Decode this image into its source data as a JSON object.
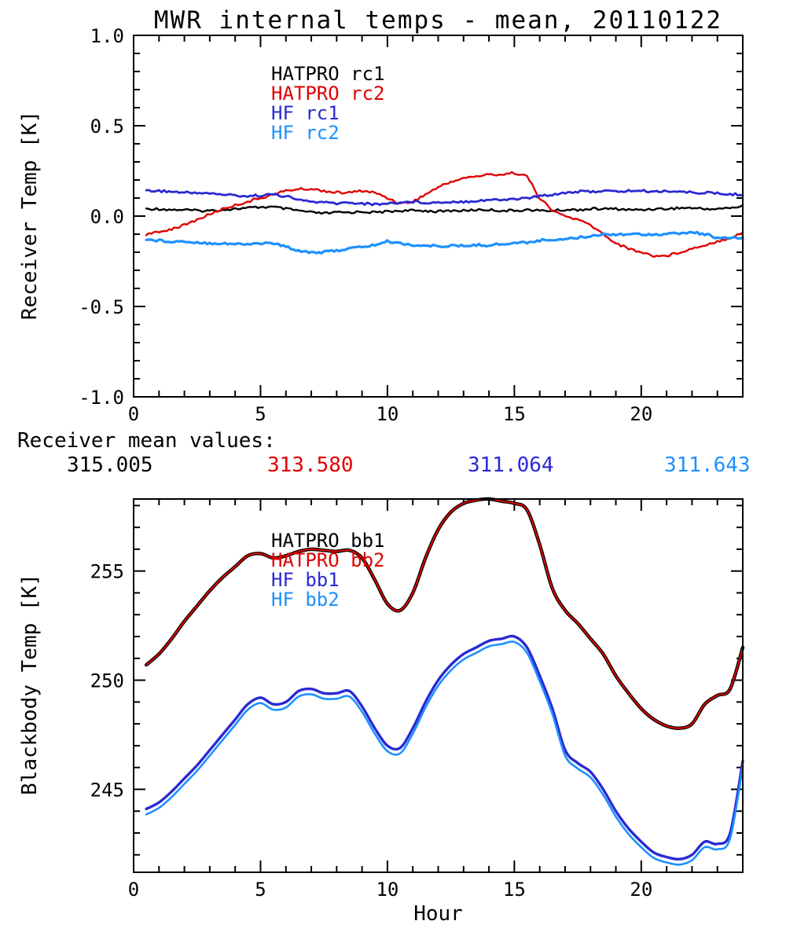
{
  "title": "MWR internal temps - mean, 20110122",
  "mean_values": {
    "label": "Receiver mean values:",
    "values": [
      {
        "text": "315.005",
        "color": "#000000"
      },
      {
        "text": "313.580",
        "color": "#e00000"
      },
      {
        "text": "311.064",
        "color": "#2a2ad2"
      },
      {
        "text": "311.643",
        "color": "#1e90ff"
      }
    ]
  },
  "chart_data": [
    {
      "type": "line",
      "panel": "receiver",
      "ylabel": "Receiver Temp [K]",
      "xlabel": "",
      "xlim": [
        0,
        24
      ],
      "ylim": [
        -1.0,
        1.0
      ],
      "grid": false,
      "legend_position": "upper-left-inside",
      "xticks": [
        {
          "v": 0,
          "label": "0"
        },
        {
          "v": 5,
          "label": "5"
        },
        {
          "v": 10,
          "label": "10"
        },
        {
          "v": 15,
          "label": "15"
        },
        {
          "v": 20,
          "label": "20"
        }
      ],
      "yticks": [
        {
          "v": 1.0,
          "label": "1.0"
        },
        {
          "v": 0.5,
          "label": "0.5"
        },
        {
          "v": 0.0,
          "label": "0.0"
        },
        {
          "v": -0.5,
          "label": "-0.5"
        },
        {
          "v": -1.0,
          "label": "-1.0"
        }
      ],
      "x": [
        0.5,
        1,
        1.5,
        2,
        2.5,
        3,
        3.5,
        4,
        4.5,
        5,
        5.5,
        6,
        6.5,
        7,
        7.5,
        8,
        8.5,
        9,
        9.5,
        10,
        10.5,
        11,
        11.5,
        12,
        12.5,
        13,
        13.5,
        14,
        14.5,
        15,
        15.5,
        16,
        16.5,
        17,
        17.5,
        18,
        18.5,
        19,
        19.5,
        20,
        20.5,
        21,
        21.5,
        22,
        22.5,
        23,
        23.5,
        24
      ],
      "series": [
        {
          "name": "HATPRO rc1",
          "color": "#000000",
          "values": [
            0.04,
            0.04,
            0.035,
            0.035,
            0.03,
            0.03,
            0.035,
            0.04,
            0.045,
            0.05,
            0.05,
            0.04,
            0.03,
            0.02,
            0.015,
            0.02,
            0.02,
            0.025,
            0.02,
            0.025,
            0.03,
            0.03,
            0.03,
            0.025,
            0.03,
            0.03,
            0.035,
            0.035,
            0.03,
            0.03,
            0.035,
            0.03,
            0.03,
            0.035,
            0.035,
            0.04,
            0.04,
            0.04,
            0.035,
            0.035,
            0.04,
            0.04,
            0.045,
            0.045,
            0.04,
            0.04,
            0.045,
            0.055
          ]
        },
        {
          "name": "HATPRO rc2",
          "color": "#e00000",
          "values": [
            -0.1,
            -0.09,
            -0.07,
            -0.05,
            -0.02,
            0.01,
            0.04,
            0.06,
            0.08,
            0.1,
            0.12,
            0.14,
            0.15,
            0.15,
            0.14,
            0.13,
            0.13,
            0.14,
            0.13,
            0.1,
            0.07,
            0.08,
            0.12,
            0.16,
            0.19,
            0.21,
            0.22,
            0.23,
            0.23,
            0.24,
            0.22,
            0.1,
            0.03,
            0.0,
            -0.02,
            -0.05,
            -0.1,
            -0.15,
            -0.18,
            -0.2,
            -0.22,
            -0.22,
            -0.2,
            -0.18,
            -0.16,
            -0.14,
            -0.12,
            -0.09
          ]
        },
        {
          "name": "HF rc1",
          "color": "#2a2ad2",
          "values": [
            0.14,
            0.14,
            0.135,
            0.13,
            0.13,
            0.125,
            0.12,
            0.115,
            0.11,
            0.115,
            0.12,
            0.11,
            0.09,
            0.08,
            0.075,
            0.07,
            0.075,
            0.07,
            0.065,
            0.07,
            0.075,
            0.08,
            0.075,
            0.075,
            0.08,
            0.08,
            0.085,
            0.09,
            0.09,
            0.095,
            0.1,
            0.11,
            0.12,
            0.13,
            0.135,
            0.135,
            0.14,
            0.135,
            0.14,
            0.14,
            0.135,
            0.14,
            0.135,
            0.13,
            0.13,
            0.125,
            0.12,
            0.12
          ]
        },
        {
          "name": "HF rc2",
          "color": "#1e90ff",
          "values": [
            -0.13,
            -0.135,
            -0.14,
            -0.14,
            -0.145,
            -0.15,
            -0.15,
            -0.155,
            -0.155,
            -0.15,
            -0.15,
            -0.17,
            -0.19,
            -0.2,
            -0.2,
            -0.19,
            -0.18,
            -0.17,
            -0.16,
            -0.14,
            -0.15,
            -0.16,
            -0.165,
            -0.165,
            -0.165,
            -0.165,
            -0.16,
            -0.16,
            -0.155,
            -0.15,
            -0.145,
            -0.135,
            -0.13,
            -0.125,
            -0.12,
            -0.11,
            -0.1,
            -0.1,
            -0.1,
            -0.1,
            -0.1,
            -0.1,
            -0.095,
            -0.09,
            -0.1,
            -0.12,
            -0.125,
            -0.12
          ]
        }
      ]
    },
    {
      "type": "line",
      "panel": "blackbody",
      "ylabel": "Blackbody Temp [K]",
      "xlabel": "Hour",
      "xlim": [
        0,
        24
      ],
      "ylim": [
        241.2,
        258.3
      ],
      "grid": false,
      "legend_position": "upper-left-inside",
      "xticks": [
        {
          "v": 0,
          "label": "0"
        },
        {
          "v": 5,
          "label": "5"
        },
        {
          "v": 10,
          "label": "10"
        },
        {
          "v": 15,
          "label": "15"
        },
        {
          "v": 20,
          "label": "20"
        }
      ],
      "yticks": [
        {
          "v": 255,
          "label": "255"
        },
        {
          "v": 250,
          "label": "250"
        },
        {
          "v": 245,
          "label": "245"
        }
      ],
      "x": [
        0.5,
        1,
        1.5,
        2,
        2.5,
        3,
        3.5,
        4,
        4.5,
        5,
        5.5,
        6,
        6.5,
        7,
        7.5,
        8,
        8.5,
        9,
        9.5,
        10,
        10.5,
        11,
        11.5,
        12,
        12.5,
        13,
        13.5,
        14,
        14.5,
        15,
        15.5,
        16,
        16.5,
        17,
        17.5,
        18,
        18.5,
        19,
        19.5,
        20,
        20.5,
        21,
        21.5,
        22,
        22.5,
        23,
        23.5,
        24
      ],
      "series": [
        {
          "name": "HATPRO bb1",
          "color": "#000000",
          "values": [
            250.7,
            251.2,
            251.9,
            252.7,
            253.4,
            254.1,
            254.7,
            255.2,
            255.7,
            255.8,
            255.6,
            255.7,
            255.9,
            256.0,
            255.95,
            255.9,
            255.95,
            255.6,
            254.6,
            253.5,
            253.2,
            254.0,
            255.6,
            256.9,
            257.7,
            258.1,
            258.25,
            258.3,
            258.2,
            258.1,
            257.8,
            256.2,
            254.2,
            253.2,
            252.6,
            251.9,
            251.2,
            250.2,
            249.4,
            248.7,
            248.2,
            247.9,
            247.8,
            248.0,
            248.9,
            249.3,
            249.6,
            251.5
          ]
        },
        {
          "name": "HATPRO bb2",
          "color": "#e00000",
          "values": [
            250.7,
            251.2,
            251.9,
            252.7,
            253.4,
            254.1,
            254.7,
            255.2,
            255.7,
            255.8,
            255.6,
            255.7,
            255.9,
            256.0,
            255.95,
            255.9,
            255.95,
            255.6,
            254.6,
            253.5,
            253.2,
            254.0,
            255.6,
            256.9,
            257.7,
            258.1,
            258.25,
            258.3,
            258.2,
            258.1,
            257.8,
            256.2,
            254.2,
            253.2,
            252.6,
            251.9,
            251.2,
            250.2,
            249.4,
            248.7,
            248.2,
            247.9,
            247.8,
            248.0,
            248.9,
            249.3,
            249.6,
            251.5
          ]
        },
        {
          "name": "HF bb1",
          "color": "#2a2ad2",
          "values": [
            244.1,
            244.4,
            244.9,
            245.5,
            246.1,
            246.8,
            247.5,
            248.2,
            248.9,
            249.2,
            248.9,
            249.0,
            249.5,
            249.6,
            249.4,
            249.4,
            249.5,
            248.8,
            247.8,
            247.0,
            246.9,
            247.8,
            249.0,
            250.0,
            250.7,
            251.2,
            251.5,
            251.8,
            251.9,
            252.0,
            251.5,
            250.2,
            248.7,
            246.8,
            246.2,
            245.8,
            245.0,
            244.0,
            243.2,
            242.6,
            242.1,
            241.9,
            241.8,
            242.0,
            242.6,
            242.5,
            243.0,
            246.3
          ]
        },
        {
          "name": "HF bb2",
          "color": "#1e90ff",
          "values": [
            243.85,
            244.15,
            244.65,
            245.25,
            245.85,
            246.55,
            247.25,
            247.95,
            248.65,
            248.95,
            248.65,
            248.75,
            249.25,
            249.35,
            249.15,
            249.15,
            249.25,
            248.55,
            247.55,
            246.75,
            246.65,
            247.55,
            248.75,
            249.75,
            250.45,
            250.95,
            251.25,
            251.55,
            251.65,
            251.75,
            251.25,
            249.95,
            248.45,
            246.55,
            245.95,
            245.55,
            244.75,
            243.75,
            242.95,
            242.35,
            241.85,
            241.65,
            241.55,
            241.75,
            242.35,
            242.25,
            242.75,
            246.05
          ]
        }
      ]
    }
  ]
}
